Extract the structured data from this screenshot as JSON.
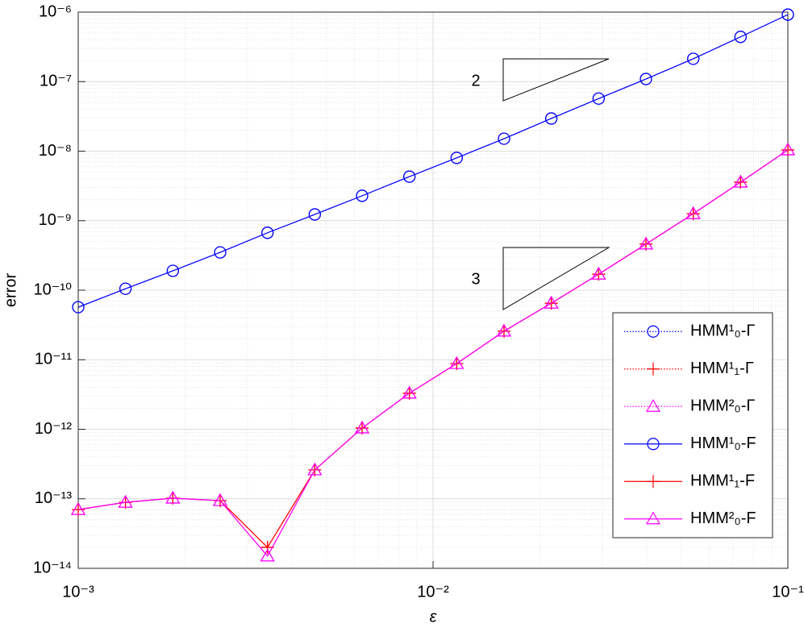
{
  "chart_data": {
    "type": "line",
    "x_label": "ε",
    "y_label": "error",
    "xscale": "log",
    "yscale": "log",
    "grid": true,
    "minor_grid": true,
    "legend_position": "lower right",
    "xlim": [
      0.001,
      0.1
    ],
    "ylim": [
      1e-14,
      1e-06
    ],
    "xticks": [
      {
        "value": 0.001,
        "label": "10⁻³"
      },
      {
        "value": 0.01,
        "label": "10⁻²"
      },
      {
        "value": 0.1,
        "label": "10⁻¹"
      }
    ],
    "yticks": [
      {
        "value": 1e-14,
        "label": "10⁻¹⁴"
      },
      {
        "value": 1e-13,
        "label": "10⁻¹³"
      },
      {
        "value": 1e-12,
        "label": "10⁻¹²"
      },
      {
        "value": 1e-11,
        "label": "10⁻¹¹"
      },
      {
        "value": 1e-10,
        "label": "10⁻¹⁰"
      },
      {
        "value": 1e-09,
        "label": "10⁻⁹"
      },
      {
        "value": 1e-08,
        "label": "10⁻⁸"
      },
      {
        "value": 1e-07,
        "label": "10⁻⁷"
      },
      {
        "value": 1e-06,
        "label": "10⁻⁶"
      }
    ],
    "x": [
      0.001,
      0.001359,
      0.001848,
      0.002512,
      0.003415,
      0.004642,
      0.00631,
      0.008577,
      0.01166,
      0.01585,
      0.02154,
      0.02929,
      0.03981,
      0.05412,
      0.07356,
      0.1
    ],
    "annotations": [
      "2",
      "3"
    ],
    "series": [
      {
        "name": "HMM¹₀-Γ",
        "color": "#0000ff",
        "marker": "circle",
        "linestyle": "dotted",
        "values": [
          5.7e-11,
          1.05e-10,
          1.9e-10,
          3.5e-10,
          6.7e-10,
          1.23e-09,
          2.28e-09,
          4.3e-09,
          8e-09,
          1.51e-08,
          2.95e-08,
          5.7e-08,
          1.09e-07,
          2.13e-07,
          4.4e-07,
          9.2e-07
        ]
      },
      {
        "name": "HMM¹₁-Γ",
        "color": "#ff0000",
        "marker": "plus",
        "linestyle": "dotted",
        "values": [
          7e-14,
          8.9e-14,
          1.02e-13,
          9.4e-14,
          2e-14,
          2.6e-13,
          1.04e-12,
          3.3e-12,
          8.8e-12,
          2.57e-11,
          6.5e-11,
          1.7e-10,
          4.6e-10,
          1.26e-09,
          3.58e-09,
          1.04e-08
        ]
      },
      {
        "name": "HMM²₀-Γ",
        "color": "#ff00ff",
        "marker": "triangle",
        "linestyle": "dotted",
        "values": [
          7e-14,
          8.9e-14,
          1.02e-13,
          9.4e-14,
          1.5e-14,
          2.6e-13,
          1.04e-12,
          3.3e-12,
          8.8e-12,
          2.57e-11,
          6.5e-11,
          1.7e-10,
          4.6e-10,
          1.26e-09,
          3.58e-09,
          1.04e-08
        ]
      },
      {
        "name": "HMM¹₀-F",
        "color": "#0000ff",
        "marker": "circle",
        "linestyle": "solid",
        "values": [
          5.7e-11,
          1.05e-10,
          1.9e-10,
          3.5e-10,
          6.7e-10,
          1.23e-09,
          2.28e-09,
          4.3e-09,
          8e-09,
          1.51e-08,
          2.95e-08,
          5.7e-08,
          1.09e-07,
          2.13e-07,
          4.4e-07,
          9.2e-07
        ]
      },
      {
        "name": "HMM¹₁-F",
        "color": "#ff0000",
        "marker": "plus",
        "linestyle": "solid",
        "values": [
          7e-14,
          8.9e-14,
          1.02e-13,
          9.4e-14,
          2e-14,
          2.6e-13,
          1.04e-12,
          3.3e-12,
          8.8e-12,
          2.57e-11,
          6.5e-11,
          1.7e-10,
          4.6e-10,
          1.26e-09,
          3.58e-09,
          1.04e-08
        ]
      },
      {
        "name": "HMM²₀-F",
        "color": "#ff00ff",
        "marker": "triangle",
        "linestyle": "solid",
        "values": [
          7e-14,
          8.9e-14,
          1.02e-13,
          9.4e-14,
          1.5e-14,
          2.6e-13,
          1.04e-12,
          3.3e-12,
          8.8e-12,
          2.57e-11,
          6.5e-11,
          1.7e-10,
          4.6e-10,
          1.26e-09,
          3.58e-09,
          1.04e-08
        ]
      }
    ]
  }
}
